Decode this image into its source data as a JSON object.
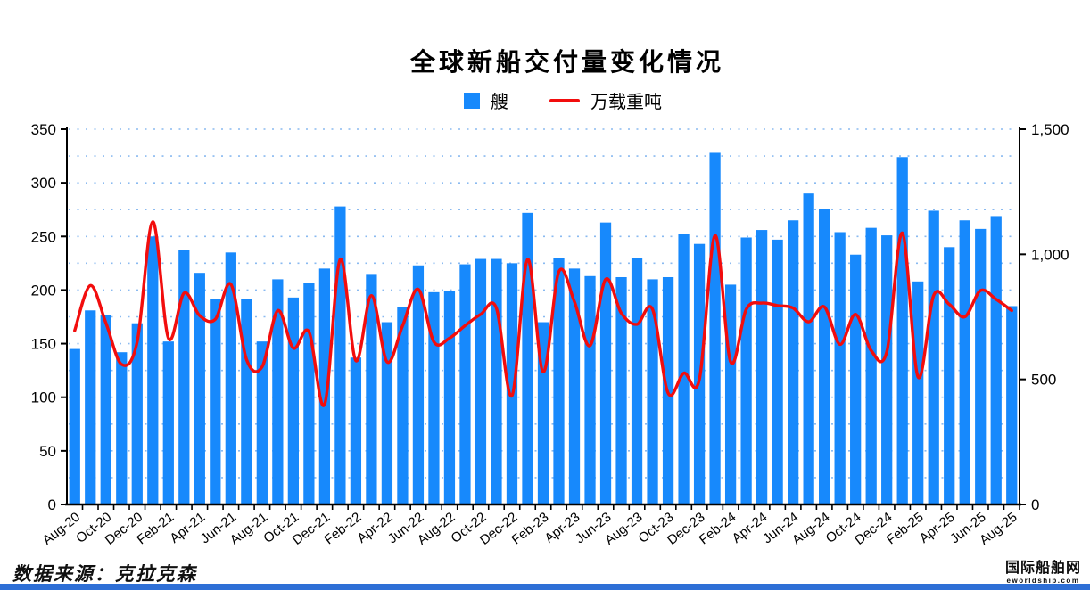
{
  "title": "全球新船交付量变化情况",
  "legend": [
    {
      "label": "艘",
      "swatch": "square",
      "color": "#1789FC"
    },
    {
      "label": "万载重吨",
      "swatch": "line",
      "color": "#F20D0D"
    }
  ],
  "source_note": "数据来源：克拉克森",
  "footer_logo": {
    "name": "国际船舶网",
    "domain": "eworldship.com"
  },
  "colors": {
    "bar": "#1789FC",
    "line": "#F20D0D",
    "grid": "#8ABAF0",
    "axis": "#000000",
    "text": "#000000",
    "footer_bar": "#2E6FD6"
  },
  "chart_data": {
    "type": "bar+line",
    "title": "全球新船交付量变化情况",
    "categories": [
      "Aug-20",
      "Sep-20",
      "Oct-20",
      "Nov-20",
      "Dec-20",
      "Jan-21",
      "Feb-21",
      "Mar-21",
      "Apr-21",
      "May-21",
      "Jun-21",
      "Jul-21",
      "Aug-21",
      "Sep-21",
      "Oct-21",
      "Nov-21",
      "Dec-21",
      "Jan-22",
      "Feb-22",
      "Mar-22",
      "Apr-22",
      "May-22",
      "Jun-22",
      "Jul-22",
      "Aug-22",
      "Sep-22",
      "Oct-22",
      "Nov-22",
      "Dec-22",
      "Jan-23",
      "Feb-23",
      "Mar-23",
      "Apr-23",
      "May-23",
      "Jun-23",
      "Jul-23",
      "Aug-23",
      "Sep-23",
      "Oct-23",
      "Nov-23",
      "Dec-23",
      "Jan-24",
      "Feb-24",
      "Mar-24",
      "Apr-24",
      "May-24",
      "Jun-24",
      "Jul-24",
      "Aug-24",
      "Sep-24",
      "Oct-24",
      "Nov-24",
      "Dec-24",
      "Jan-25",
      "Feb-25",
      "Mar-25",
      "Apr-25",
      "May-25",
      "Jun-25",
      "Jul-25",
      "Aug-25"
    ],
    "series": [
      {
        "name": "艘",
        "type": "bar",
        "axis": "left",
        "values": [
          145,
          181,
          177,
          142,
          169,
          250,
          152,
          237,
          216,
          192,
          235,
          192,
          152,
          210,
          193,
          207,
          220,
          278,
          137,
          215,
          170,
          184,
          223,
          198,
          199,
          224,
          229,
          229,
          225,
          272,
          170,
          230,
          220,
          213,
          263,
          212,
          230,
          210,
          212,
          252,
          243,
          328,
          205,
          249,
          256,
          247,
          265,
          290,
          276,
          254,
          233,
          258,
          251,
          324,
          208,
          274,
          240,
          265,
          257,
          269,
          185
        ]
      },
      {
        "name": "万载重吨",
        "type": "line",
        "axis": "right",
        "values": [
          695,
          875,
          725,
          560,
          650,
          1130,
          665,
          845,
          755,
          740,
          880,
          580,
          550,
          775,
          625,
          690,
          400,
          980,
          575,
          835,
          570,
          715,
          860,
          650,
          665,
          715,
          760,
          785,
          435,
          980,
          530,
          930,
          810,
          635,
          900,
          765,
          720,
          780,
          445,
          525,
          500,
          1075,
          570,
          780,
          805,
          795,
          785,
          730,
          790,
          640,
          760,
          615,
          610,
          1085,
          510,
          835,
          800,
          750,
          855,
          820,
          775
        ]
      }
    ],
    "left_axis": {
      "min": 0,
      "max": 350,
      "step": 50,
      "tick_labels": [
        "0",
        "50",
        "100",
        "150",
        "200",
        "250",
        "300",
        "350"
      ]
    },
    "right_axis": {
      "min": 0,
      "max": 1500,
      "step": 500,
      "tick_labels": [
        "0",
        "500",
        "1,000",
        "1,500"
      ]
    },
    "x_label_every": 2,
    "grid": {
      "horizontal_step_left_units": 25,
      "style": "dotted"
    },
    "legend_position": "top"
  }
}
